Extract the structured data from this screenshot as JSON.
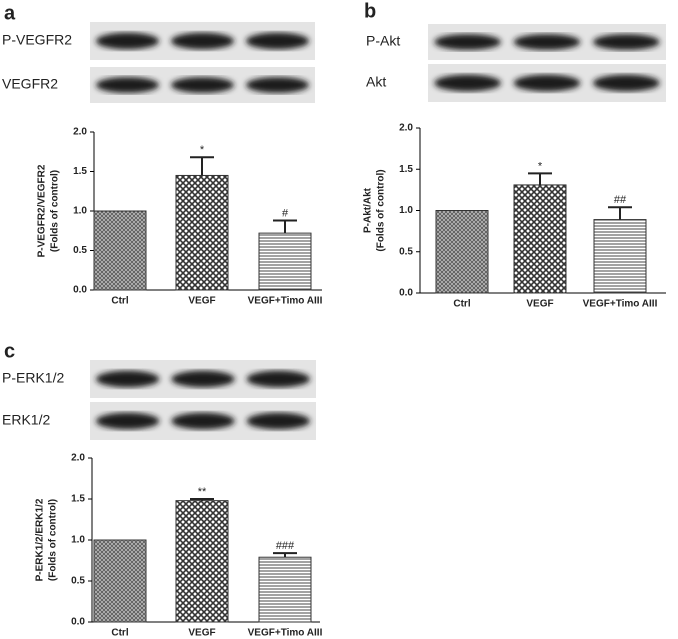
{
  "chart_data": [
    {
      "type": "bar",
      "panel_label": "a",
      "blot_labels": [
        "P-VEGFR2",
        "VEGFR2"
      ],
      "y_label": [
        "P-VEGFR2/VEGFR2",
        "(Folds of control)"
      ],
      "categories": [
        "Ctrl",
        "VEGF",
        "VEGF+Timo AIII"
      ],
      "values": [
        1.0,
        1.45,
        0.72
      ],
      "errors": [
        0,
        0.23,
        0.16
      ],
      "value_annotations": [
        null,
        "*",
        "#"
      ],
      "ylim": [
        0,
        2
      ],
      "yticks": [
        {
          "value": 0,
          "label": "0.0"
        },
        0.5,
        {
          "value": 1,
          "label": "1.0"
        },
        1.5,
        {
          "value": 2,
          "label": "2.0"
        }
      ]
    },
    {
      "type": "bar",
      "panel_label": "b",
      "blot_labels": [
        "P-Akt",
        "Akt"
      ],
      "y_label": [
        "P-Akt/Akt",
        "(Folds of control)"
      ],
      "categories": [
        "Ctrl",
        "VEGF",
        "VEGF+Timo AIII"
      ],
      "values": [
        1.0,
        1.31,
        0.89
      ],
      "errors": [
        0,
        0.14,
        0.15
      ],
      "value_annotations": [
        null,
        "*",
        "##"
      ],
      "ylim": [
        0,
        2
      ],
      "yticks": [
        {
          "value": 0,
          "label": "0.0"
        },
        0.5,
        {
          "value": 1,
          "label": "1.0"
        },
        1.5,
        {
          "value": 2,
          "label": "2.0"
        }
      ]
    },
    {
      "type": "bar",
      "panel_label": "c",
      "blot_labels": [
        "P-ERK1/2",
        "ERK1/2"
      ],
      "y_label": [
        "P-ERK1/2/ERK1/2",
        "(Folds of control)"
      ],
      "categories": [
        "Ctrl",
        "VEGF",
        "VEGF+Timo AIII"
      ],
      "values": [
        1.0,
        1.48,
        0.79
      ],
      "errors": [
        0,
        0.02,
        0.05
      ],
      "value_annotations": [
        null,
        "**",
        "###"
      ],
      "ylim": [
        0,
        2
      ],
      "yticks": [
        {
          "value": 0,
          "label": "0.0"
        },
        0.5,
        {
          "value": 1,
          "label": "1.0"
        },
        1.5,
        {
          "value": 2,
          "label": "2.0"
        }
      ]
    }
  ]
}
